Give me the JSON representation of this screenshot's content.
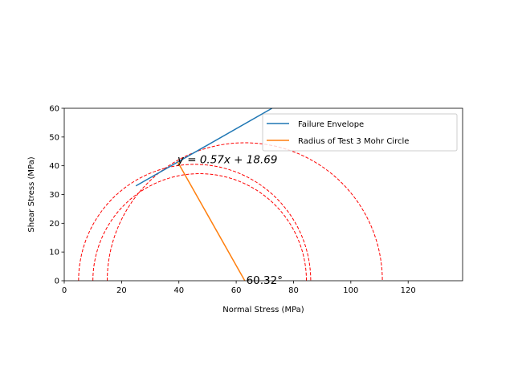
{
  "chart_data": {
    "type": "line",
    "xlabel": "Normal Stress (MPa)",
    "ylabel": "Shear Stress (MPa)",
    "xlim": [
      0,
      139
    ],
    "ylim": [
      0,
      60
    ],
    "xticks": [
      0,
      20,
      40,
      60,
      80,
      100,
      120
    ],
    "yticks": [
      0,
      10,
      20,
      30,
      40,
      50,
      60
    ],
    "grid": false,
    "legend_position": "upper right",
    "series": [
      {
        "name": "Failure Envelope",
        "color": "#1f77b4",
        "style": "solid",
        "x": [
          25,
          72.5
        ],
        "y": [
          33.0,
          60.0
        ]
      },
      {
        "name": "Radius of Test 3 Mohr Circle",
        "color": "#ff7f0e",
        "style": "solid",
        "x": [
          39.6,
          63.0
        ],
        "y": [
          41.3,
          0
        ]
      }
    ],
    "mohr_circles": {
      "color": "#ff0000",
      "style": "dashed",
      "circles": [
        {
          "sigma3": 5,
          "sigma1": 86
        },
        {
          "sigma3": 10,
          "sigma1": 84.5
        },
        {
          "sigma3": 15,
          "sigma1": 111
        }
      ]
    },
    "annotations": [
      {
        "text": "y = 0.57x + 18.69",
        "x": 39.5,
        "y": 42.3
      },
      {
        "text": "60.32°",
        "x": 63.5,
        "y": 0.3
      }
    ]
  }
}
